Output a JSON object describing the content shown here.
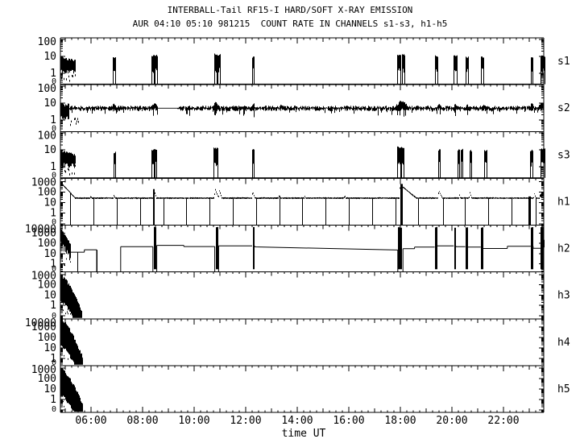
{
  "figure": {
    "title": "INTERBALL-Tail RF15-I HARD/SOFT X-RAY EMISSION",
    "subtitle": "AUR 04:10 05:10 981215  COUNT RATE IN CHANNELS s1-s3, h1-h5"
  },
  "chart_data": {
    "type": "line",
    "title": "INTERBALL-Tail RF15-I HARD/SOFT X-RAY EMISSION",
    "subtitle": "AUR 04:10 05:10 981215  COUNT RATE IN CHANNELS s1-s3, h1-h5",
    "xlabel": "time UT",
    "x_unit": "hours UT on 1998-12-15",
    "x_range": [
      4.8125,
      23.5625
    ],
    "x_ticks": {
      "labels": [
        [
          "06:00",
          6
        ],
        [
          "08:00",
          8
        ],
        [
          "10:00",
          10
        ],
        [
          "12:00",
          12
        ],
        [
          "14:00",
          14
        ],
        [
          "16:00",
          16
        ],
        [
          "18:00",
          18
        ],
        [
          "20:00",
          20
        ],
        [
          "22:00",
          22
        ]
      ],
      "minor_step": 0.25,
      "hour_step": 1
    },
    "colors": {
      "fg": "#000000",
      "bg": "#ffffff"
    },
    "panels": [
      {
        "id": "s1",
        "label": "s1",
        "style": "bursts",
        "y_range": [
          0.21,
          124
        ],
        "y_tick_labels": [
          "100",
          "10",
          "1",
          "0"
        ],
        "baseline": 0.22,
        "start_event": {
          "t": [
            4.81,
            5.38
          ],
          "peak": 10,
          "floor": 0.85,
          "hairs_to": 0.3
        },
        "bursts": [
          [
            6.9,
            0.09,
            8
          ],
          [
            8.38,
            0.1,
            11
          ],
          [
            8.52,
            0.08,
            11
          ],
          [
            10.82,
            0.1,
            13
          ],
          [
            10.96,
            0.08,
            12
          ],
          [
            12.28,
            0.08,
            9
          ],
          [
            17.95,
            0.13,
            12
          ],
          [
            18.1,
            0.1,
            12
          ],
          [
            19.38,
            0.1,
            10
          ],
          [
            20.12,
            0.12,
            10
          ],
          [
            20.58,
            0.08,
            9
          ],
          [
            21.18,
            0.08,
            9
          ],
          [
            23.1,
            0.08,
            9
          ],
          [
            23.52,
            0.16,
            10
          ]
        ]
      },
      {
        "id": "s2",
        "label": "s2",
        "style": "band",
        "y_range": [
          0.21,
          124
        ],
        "y_tick_labels": [
          "100",
          "10",
          "1",
          "0"
        ],
        "level": 5,
        "start_event": {
          "t": [
            4.81,
            5.12
          ],
          "peak": 10,
          "floor": 0.95,
          "hairs_to": 0.33,
          "hairs_until": 5.5
        },
        "quiet": [
          8.58,
          9.33
        ],
        "spike": [
          9.42,
          20
        ],
        "bumps": [
          [
            6.9,
            1.5,
            0.05
          ],
          [
            8.45,
            1.6,
            0.08
          ],
          [
            10.85,
            1.8,
            0.08
          ],
          [
            12.3,
            1.5,
            0.05
          ],
          [
            13.4,
            1.3,
            0.05
          ],
          [
            15.9,
            1.25,
            0.05
          ],
          [
            18.05,
            2.3,
            0.15
          ],
          [
            19.5,
            1.5,
            0.05
          ],
          [
            20.15,
            1.4,
            0.05
          ],
          [
            20.6,
            1.4,
            0.05
          ],
          [
            21.2,
            1.4,
            0.05
          ],
          [
            23.1,
            1.5,
            0.05
          ],
          [
            23.52,
            1.9,
            0.1
          ]
        ]
      },
      {
        "id": "s3",
        "label": "s3",
        "style": "bursts",
        "y_range": [
          0.21,
          124
        ],
        "y_tick_labels": [
          "100",
          "10",
          "1",
          "0"
        ],
        "baseline": 0.22,
        "start_event": {
          "t": [
            4.81,
            5.36
          ],
          "peak": 10,
          "floor": 0.85,
          "hairs_to": 0.3
        },
        "bursts": [
          [
            6.9,
            0.08,
            7
          ],
          [
            8.38,
            0.09,
            10
          ],
          [
            8.5,
            0.08,
            10
          ],
          [
            10.82,
            0.16,
            13
          ],
          [
            12.28,
            0.09,
            10
          ],
          [
            17.95,
            0.12,
            14
          ],
          [
            18.08,
            0.1,
            14
          ],
          [
            19.5,
            0.08,
            10
          ],
          [
            20.25,
            0.08,
            10
          ],
          [
            20.38,
            0.06,
            10
          ],
          [
            20.72,
            0.07,
            9
          ],
          [
            21.3,
            0.08,
            9
          ],
          [
            23.08,
            0.08,
            9
          ],
          [
            23.52,
            0.14,
            11
          ]
        ]
      },
      {
        "id": "h1",
        "label": "h1",
        "style": "trace",
        "y_range": [
          0.075,
          2030
        ],
        "y_tick_labels": [
          "1000",
          "100",
          "10",
          "1",
          "0"
        ],
        "level": 28,
        "start": {
          "v0": 900,
          "k": 2.6
        },
        "spikes": [
          [
            6.0,
            45,
            0.05
          ],
          [
            6.9,
            55,
            0.05
          ],
          [
            8.45,
            140,
            0.06
          ],
          [
            10.82,
            190,
            0.07
          ],
          [
            10.98,
            150,
            0.06
          ],
          [
            12.28,
            110,
            0.06
          ],
          [
            13.3,
            45,
            0.05
          ],
          [
            14.3,
            42,
            0.05
          ],
          [
            15.85,
            48,
            0.05
          ],
          [
            18.0,
            480,
            0.22
          ],
          [
            19.5,
            140,
            0.08
          ],
          [
            20.3,
            55,
            0.05
          ],
          [
            20.7,
            95,
            0.06
          ],
          [
            23.2,
            75,
            0.06
          ]
        ],
        "dropouts": [
          5.2,
          6.1,
          7.0,
          7.9,
          8.8,
          9.7,
          10.6,
          11.5,
          12.4,
          13.3,
          14.2,
          15.1,
          16.0,
          16.9,
          17.8,
          18.7,
          19.65,
          20.5,
          21.4,
          22.3,
          23.25
        ],
        "bars": [
          [
            8.45,
            2
          ],
          [
            18.03,
            3
          ],
          [
            23.0,
            3
          ]
        ],
        "end_rise": {
          "t": 23.42,
          "v": 55
        }
      },
      {
        "id": "h2",
        "label": "h2",
        "style": "steps",
        "y_range": [
          0.165,
          6130
        ],
        "y_tick_labels": [
          "10000",
          "1000",
          "100",
          "10",
          "1",
          "0"
        ],
        "start_event": {
          "t": [
            4.81,
            5.18
          ],
          "peak": 3200
        },
        "segments": [
          [
            5.18,
            5.74,
            14,
            14
          ],
          [
            5.74,
            6.22,
            24,
            24
          ],
          [
            7.15,
            8.4,
            48,
            48
          ],
          [
            8.55,
            9.6,
            65,
            65
          ],
          [
            9.6,
            10.8,
            50,
            50
          ],
          [
            10.95,
            12.25,
            58,
            58
          ],
          [
            12.35,
            17.9,
            46,
            23
          ],
          [
            18.1,
            18.55,
            31,
            31
          ],
          [
            18.55,
            19.33,
            44,
            44
          ],
          [
            19.42,
            20.07,
            58,
            58
          ],
          [
            20.15,
            20.52,
            48,
            48
          ],
          [
            20.6,
            21.12,
            44,
            44
          ],
          [
            21.2,
            22.15,
            32,
            32
          ],
          [
            22.15,
            23.06,
            52,
            52
          ],
          [
            23.15,
            23.44,
            34,
            34
          ]
        ],
        "bars": [
          [
            8.47,
            3
          ],
          [
            10.87,
            3
          ],
          [
            12.3,
            2
          ],
          [
            17.97,
            5
          ],
          [
            19.37,
            3
          ],
          [
            20.11,
            2
          ],
          [
            20.56,
            3
          ],
          [
            21.16,
            3
          ],
          [
            23.1,
            3
          ],
          [
            23.5,
            4
          ]
        ],
        "bar_top": 4200,
        "vlines": [
          [
            5.47,
            14
          ],
          [
            6.22,
            24
          ]
        ],
        "edge_blob": {
          "t": [
            23.44,
            23.56
          ],
          "lo": 30,
          "hi": 260
        }
      },
      {
        "id": "h3",
        "label": "h3",
        "style": "decay",
        "y_range": [
          0.05,
          1850
        ],
        "y_tick_labels": [
          "1000",
          "100",
          "10",
          "1",
          "0"
        ],
        "v0": 650,
        "t_end": 5.62
      },
      {
        "id": "h4",
        "label": "h4",
        "style": "decay",
        "y_range": [
          0.21,
          6150
        ],
        "y_tick_labels": [
          "10000",
          "1000",
          "100",
          "10",
          "1",
          "0"
        ],
        "v0": 4500,
        "t_end": 5.65
      },
      {
        "id": "h5",
        "label": "h5",
        "style": "decay",
        "y_range": [
          0.059,
          1740
        ],
        "y_tick_labels": [
          "1000",
          "100",
          "10",
          "1",
          "0"
        ],
        "v0": 750,
        "t_end": 5.66
      }
    ]
  }
}
